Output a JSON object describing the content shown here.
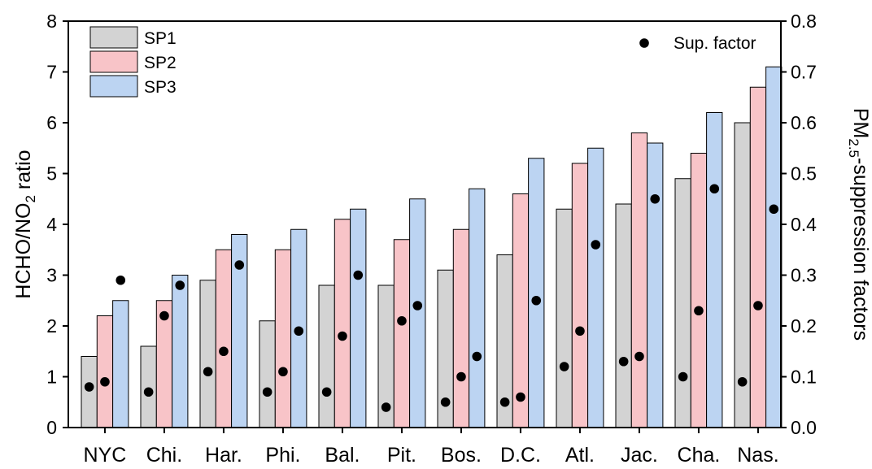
{
  "chart_data": {
    "type": "bar",
    "categories": [
      "NYC",
      "Chi.",
      "Har.",
      "Phi.",
      "Bal.",
      "Pit.",
      "Bos.",
      "D.C.",
      "Atl.",
      "Jac.",
      "Cha.",
      "Nas."
    ],
    "series": [
      {
        "name": "SP1",
        "axis": "left",
        "color": "#d3d3d3",
        "values": [
          1.4,
          1.6,
          2.9,
          2.1,
          2.8,
          2.8,
          3.1,
          3.4,
          4.3,
          4.4,
          4.9,
          6.0
        ]
      },
      {
        "name": "SP2",
        "axis": "left",
        "color": "#f8c4c8",
        "values": [
          2.2,
          2.5,
          3.5,
          3.5,
          4.1,
          3.7,
          3.9,
          4.6,
          5.2,
          5.8,
          5.4,
          6.7
        ]
      },
      {
        "name": "SP3",
        "axis": "left",
        "color": "#bcd4f2",
        "values": [
          2.5,
          3.0,
          3.8,
          3.9,
          4.3,
          4.5,
          4.7,
          5.3,
          5.5,
          5.6,
          6.2,
          7.1
        ]
      }
    ],
    "scatter": {
      "name": "Sup. factor",
      "axis": "right",
      "color": "#000000",
      "values": [
        [
          0.08,
          0.09,
          0.29
        ],
        [
          0.07,
          0.22,
          0.28
        ],
        [
          0.11,
          0.15,
          0.32
        ],
        [
          0.07,
          0.11,
          0.19
        ],
        [
          0.07,
          0.18,
          0.3
        ],
        [
          0.04,
          0.21,
          0.24
        ],
        [
          0.05,
          0.1,
          0.14
        ],
        [
          0.05,
          0.06,
          0.25
        ],
        [
          0.12,
          0.19,
          0.36
        ],
        [
          0.13,
          0.14,
          0.45
        ],
        [
          0.1,
          0.23,
          0.47
        ],
        [
          0.09,
          0.24,
          0.43
        ]
      ]
    },
    "ylabel": "HCHO/NO",
    "ylabel_sub": "2",
    "ylabel_tail": " ratio",
    "y2label": "PM",
    "y2label_sub": "2.5",
    "y2label_tail": "-suppression factors",
    "ylim": [
      0,
      8
    ],
    "y2lim": [
      0,
      0.8
    ],
    "yticks": [
      "0",
      "1",
      "2",
      "3",
      "4",
      "5",
      "6",
      "7",
      "8"
    ],
    "y2ticks": [
      "0.0",
      "0.1",
      "0.2",
      "0.3",
      "0.4",
      "0.5",
      "0.6",
      "0.7",
      "0.8"
    ],
    "legend_bars": "top-left",
    "legend_scatter": "top-right",
    "grid": false
  }
}
